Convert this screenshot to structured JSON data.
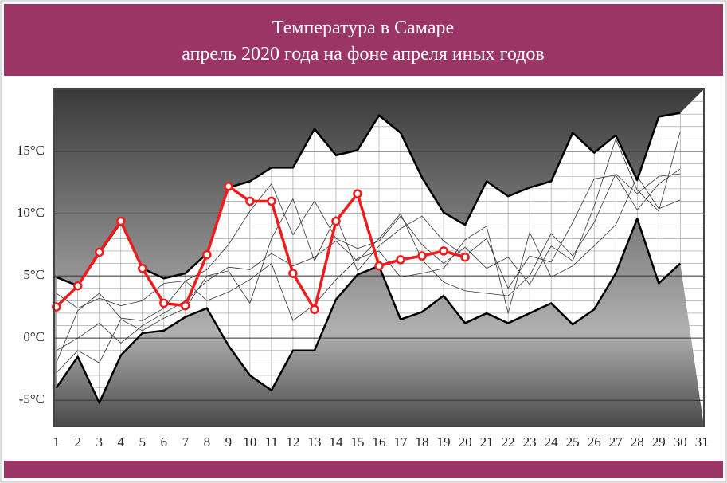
{
  "chart_data": {
    "type": "line",
    "title": "Температура в Самаре",
    "subtitle": "апрель 2020 года на фоне апреля иных годов",
    "x": [
      1,
      2,
      3,
      4,
      5,
      6,
      7,
      8,
      9,
      10,
      11,
      12,
      13,
      14,
      15,
      16,
      17,
      18,
      19,
      20,
      21,
      22,
      23,
      24,
      25,
      26,
      27,
      28,
      29,
      30,
      31
    ],
    "xlim": [
      0.9,
      31.1
    ],
    "xticks": [
      1,
      2,
      3,
      4,
      5,
      6,
      7,
      8,
      9,
      10,
      11,
      12,
      13,
      14,
      15,
      16,
      17,
      18,
      19,
      20,
      21,
      22,
      23,
      24,
      25,
      26,
      27,
      28,
      29,
      30,
      31
    ],
    "ylim": [
      -7.1,
      20
    ],
    "yticks": [
      {
        "value": -5,
        "label": "-5°C"
      },
      {
        "value": 0,
        "label": "0°C"
      },
      {
        "value": 5,
        "label": "5°C"
      },
      {
        "value": 10,
        "label": "10°C"
      },
      {
        "value": 15,
        "label": "15°C"
      }
    ],
    "minor_yticks": [
      -7,
      -6,
      -4,
      -3,
      -2,
      -1,
      1,
      2,
      3,
      4,
      6,
      7,
      8,
      9,
      11,
      12,
      13,
      14,
      16,
      17,
      18,
      19
    ],
    "grid": true,
    "series": [
      {
        "color": "#333333",
        "line_width": 0.8,
        "values": [
          -2.0,
          2.2,
          3.6,
          1.6,
          1.4,
          2.4,
          4.6,
          5.5,
          7.5,
          10.2,
          12.4,
          8.3,
          11.0,
          8.0,
          7.2,
          7.8,
          9.8,
          7.5,
          6.0,
          7.3,
          5.6,
          6.5,
          4.3,
          7.4,
          6.2,
          10.6,
          16.0,
          11.9,
          10.2,
          16.6,
          null
        ]
      },
      {
        "color": "#333333",
        "line_width": 0.8,
        "values": [
          -1.0,
          0.0,
          1.2,
          -0.4,
          1.0,
          2.0,
          3.0,
          4.6,
          5.7,
          5.5,
          6.8,
          5.8,
          6.5,
          7.8,
          6.2,
          8.0,
          10.0,
          6.3,
          4.5,
          3.8,
          3.6,
          3.4,
          5.0,
          8.4,
          6.6,
          9.3,
          13.2,
          11.6,
          13.0,
          13.2,
          null
        ]
      },
      {
        "color": "#333333",
        "line_width": 0.8,
        "values": [
          3.6,
          2.4,
          3.2,
          2.6,
          3.0,
          4.4,
          4.6,
          3.0,
          3.7,
          4.7,
          6.0,
          1.4,
          2.7,
          4.7,
          6.4,
          7.0,
          4.9,
          5.2,
          5.6,
          7.9,
          9.0,
          2.0,
          8.5,
          4.9,
          5.8,
          7.4,
          9.1,
          13.0,
          10.4,
          11.1,
          null
        ]
      },
      {
        "color": "#333333",
        "line_width": 0.8,
        "values": [
          -2.8,
          -1.0,
          -2.0,
          1.5,
          0.6,
          1.6,
          2.4,
          5.0,
          5.4,
          2.8,
          8.0,
          11.2,
          6.2,
          9.8,
          5.4,
          7.4,
          8.8,
          9.8,
          7.8,
          6.6,
          8.0,
          4.0,
          6.6,
          6.1,
          9.3,
          12.8,
          13.1,
          10.3,
          12.4,
          13.6,
          null
        ]
      },
      {
        "color": "#000000",
        "line_width": 2.5,
        "values": [
          4.9,
          4.2,
          6.8,
          9.3,
          5.6,
          4.8,
          5.2,
          6.8,
          12.1,
          12.6,
          13.7,
          13.7,
          16.8,
          14.7,
          15.1,
          17.9,
          16.5,
          12.9,
          10.1,
          9.1,
          12.6,
          11.4,
          12.1,
          12.6,
          16.5,
          14.9,
          16.3,
          12.7,
          17.8,
          18.1,
          null
        ]
      },
      {
        "color": "#000000",
        "line_width": 2.5,
        "values": [
          -4.0,
          -1.5,
          -5.2,
          -1.4,
          0.4,
          0.6,
          1.7,
          2.4,
          -0.6,
          -3.0,
          -4.2,
          -1.0,
          -1.0,
          3.1,
          5.1,
          5.8,
          1.5,
          2.1,
          3.4,
          1.2,
          2.0,
          1.2,
          2.0,
          2.8,
          1.1,
          2.3,
          5.2,
          9.6,
          4.4,
          6.0,
          null
        ]
      },
      {
        "color": "#ee1c1c",
        "line_width": 3.5,
        "markers": true,
        "values": [
          2.5,
          4.2,
          6.9,
          9.4,
          5.6,
          2.8,
          2.6,
          6.7,
          12.2,
          11.0,
          11.0,
          5.2,
          2.3,
          9.4,
          11.6,
          5.8,
          6.3,
          6.6,
          7.0,
          6.5,
          null,
          null,
          null,
          null,
          null,
          null,
          null,
          null,
          null,
          null,
          null
        ]
      }
    ]
  }
}
